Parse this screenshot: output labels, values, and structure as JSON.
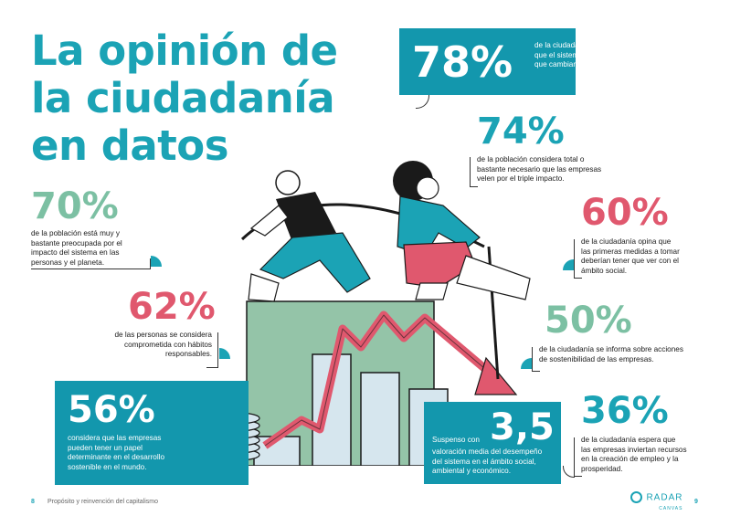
{
  "title": [
    "La opinión de",
    "la ciudadanía",
    "en datos"
  ],
  "stats": {
    "s78": {
      "value": "78%",
      "text": [
        "de la ciudadanía cree",
        "que el sistema tiene",
        "que cambiar."
      ]
    },
    "s74": {
      "value": "74%",
      "text": [
        "de la población considera total o",
        "bastante necesario que las empresas",
        "velen por el triple impacto."
      ]
    },
    "s70": {
      "value": "70%",
      "text": [
        "de la población está muy y",
        "bastante preocupada por el",
        "impacto del sistema en las",
        "personas y el planeta."
      ]
    },
    "s60": {
      "value": "60%",
      "text": [
        "de la ciudadanía opina que",
        "las primeras medidas a tomar",
        "deberían tener que ver con el",
        "ámbito social."
      ]
    },
    "s62": {
      "value": "62%",
      "text": [
        "de las personas se considera",
        "comprometida con hábitos",
        "responsables."
      ]
    },
    "s50": {
      "value": "50%",
      "text": [
        "de la ciudadanía se informa sobre acciones",
        "de sostenibilidad de las empresas."
      ]
    },
    "s56": {
      "value": "56%",
      "text": [
        "considera que las empresas",
        "pueden tener un papel",
        "determinante en el desarrollo",
        "sostenible en el mundo."
      ]
    },
    "s35": {
      "value": "3,5",
      "label": "Suspenso con",
      "text": [
        "valoración media del desempeño",
        "del sistema en el ámbito social,",
        "ambiental y económico."
      ]
    },
    "s36": {
      "value": "36%",
      "text": [
        "de la ciudadanía espera que",
        "las empresas inviertan recursos",
        "en la creación de empleo y la",
        "prosperidad."
      ]
    }
  },
  "footer": {
    "page_left": "8",
    "section": "Propósito y reinvención del capitalismo",
    "brand": "RADAR",
    "brand_sub": "CANVAS",
    "page_right": "9"
  },
  "colors": {
    "teal": "#1ba3b5",
    "box": "#1397ad",
    "green": "#7cc0a3",
    "pink": "#e0586e",
    "block": "#94c4a8"
  }
}
